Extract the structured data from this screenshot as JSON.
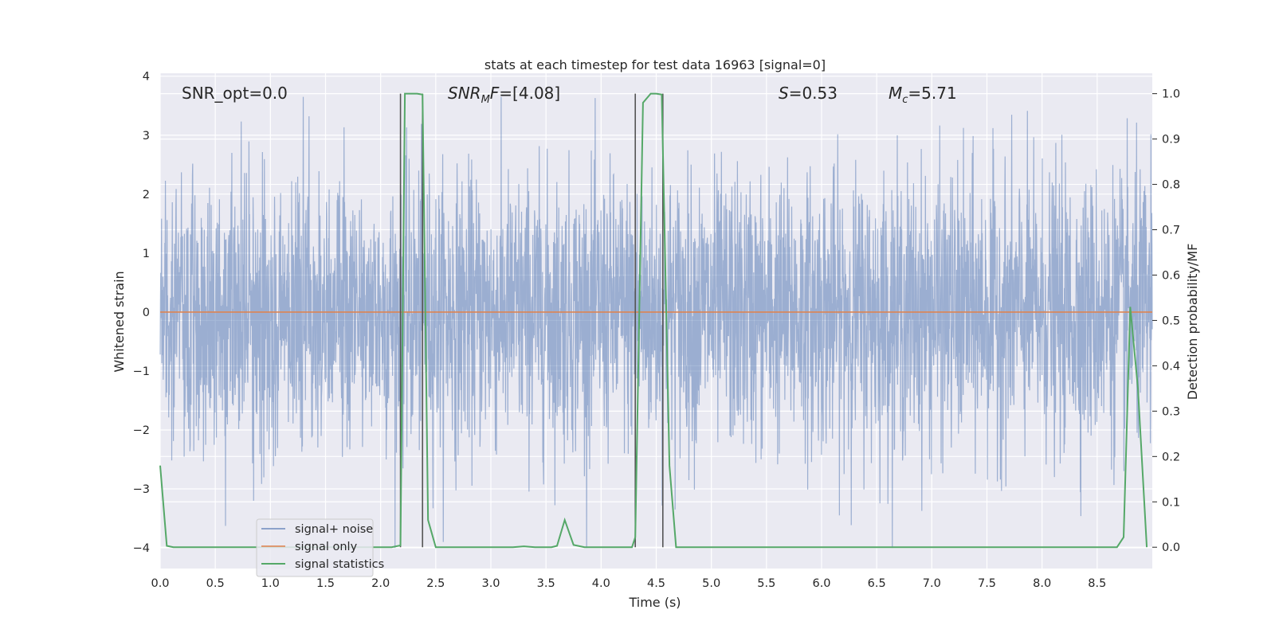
{
  "chart_data": {
    "type": "line",
    "title": "stats at each timestep for test data 16963 [signal=0]",
    "xlabel": "Time (s)",
    "ylabel": "Whitened strain",
    "y2label": "Detection probability/MF",
    "xlim": [
      0,
      9.0
    ],
    "ylim": [
      -4.35,
      4.05
    ],
    "y2lim": [
      -0.047,
      1.045
    ],
    "xticks": [
      "0.0",
      "0.5",
      "1.0",
      "1.5",
      "2.0",
      "2.5",
      "3.0",
      "3.5",
      "4.0",
      "4.5",
      "5.0",
      "5.5",
      "6.0",
      "6.5",
      "7.0",
      "7.5",
      "8.0",
      "8.5"
    ],
    "yticks": [
      "4",
      "3",
      "2",
      "1",
      "0",
      "−1",
      "−2",
      "−3",
      "−4"
    ],
    "y2ticks": [
      "1.0",
      "0.9",
      "0.8",
      "0.7",
      "0.6",
      "0.5",
      "0.4",
      "0.3",
      "0.2",
      "0.1",
      "0.0"
    ],
    "grid": true,
    "legend_position": "lower-left",
    "annotations": {
      "snr_opt": "SNR_opt=0.0",
      "snr_mf_main": "SNR",
      "snr_mf_sub": "M",
      "snr_mf_italic": "F",
      "snr_mf_value": "=[4.08]",
      "s_symbol": "S",
      "s_value": "=0.53",
      "mc_symbol": "M",
      "mc_sub": "c",
      "mc_value": "=5.71"
    },
    "series": [
      {
        "name": "signal+ noise",
        "color": "#4c72b0",
        "description_values": "whitened noise samples, approx range [-4, 3.7]",
        "noise_envelope": 3.5,
        "x_start": 0.0,
        "x_end": 9.0
      },
      {
        "name": "signal only",
        "color": "#dd8452",
        "x": [
          0.0,
          9.0
        ],
        "y": [
          0.0,
          0.0
        ]
      },
      {
        "name": "signal statistics",
        "color": "#55a868",
        "axis": "right",
        "x": [
          0.0,
          0.06,
          0.12,
          0.5,
          1.0,
          1.5,
          2.0,
          2.1,
          2.18,
          2.22,
          2.26,
          2.33,
          2.38,
          2.43,
          2.5,
          3.0,
          3.2,
          3.3,
          3.4,
          3.55,
          3.6,
          3.67,
          3.75,
          3.85,
          4.0,
          4.2,
          4.28,
          4.31,
          4.38,
          4.45,
          4.5,
          4.55,
          4.62,
          4.68,
          5.0,
          6.0,
          7.0,
          8.0,
          8.5,
          8.68,
          8.74,
          8.8,
          8.87,
          8.95
        ],
        "y": [
          0.18,
          0.003,
          0.0,
          0.0,
          0.0,
          0.0,
          0.0,
          0.0,
          0.004,
          1.0,
          1.0,
          1.0,
          0.998,
          0.06,
          0.0,
          0.0,
          0.0,
          0.002,
          0.0,
          0.0,
          0.003,
          0.06,
          0.005,
          0.0,
          0.0,
          0.0,
          0.0,
          0.022,
          0.98,
          1.0,
          1.0,
          0.998,
          0.18,
          0.0,
          0.0,
          0.0,
          0.0,
          0.0,
          0.0,
          0.0,
          0.022,
          0.53,
          0.35,
          0.0
        ]
      }
    ],
    "vertical_markers": [
      2.18,
      2.38,
      4.31,
      4.56
    ]
  }
}
